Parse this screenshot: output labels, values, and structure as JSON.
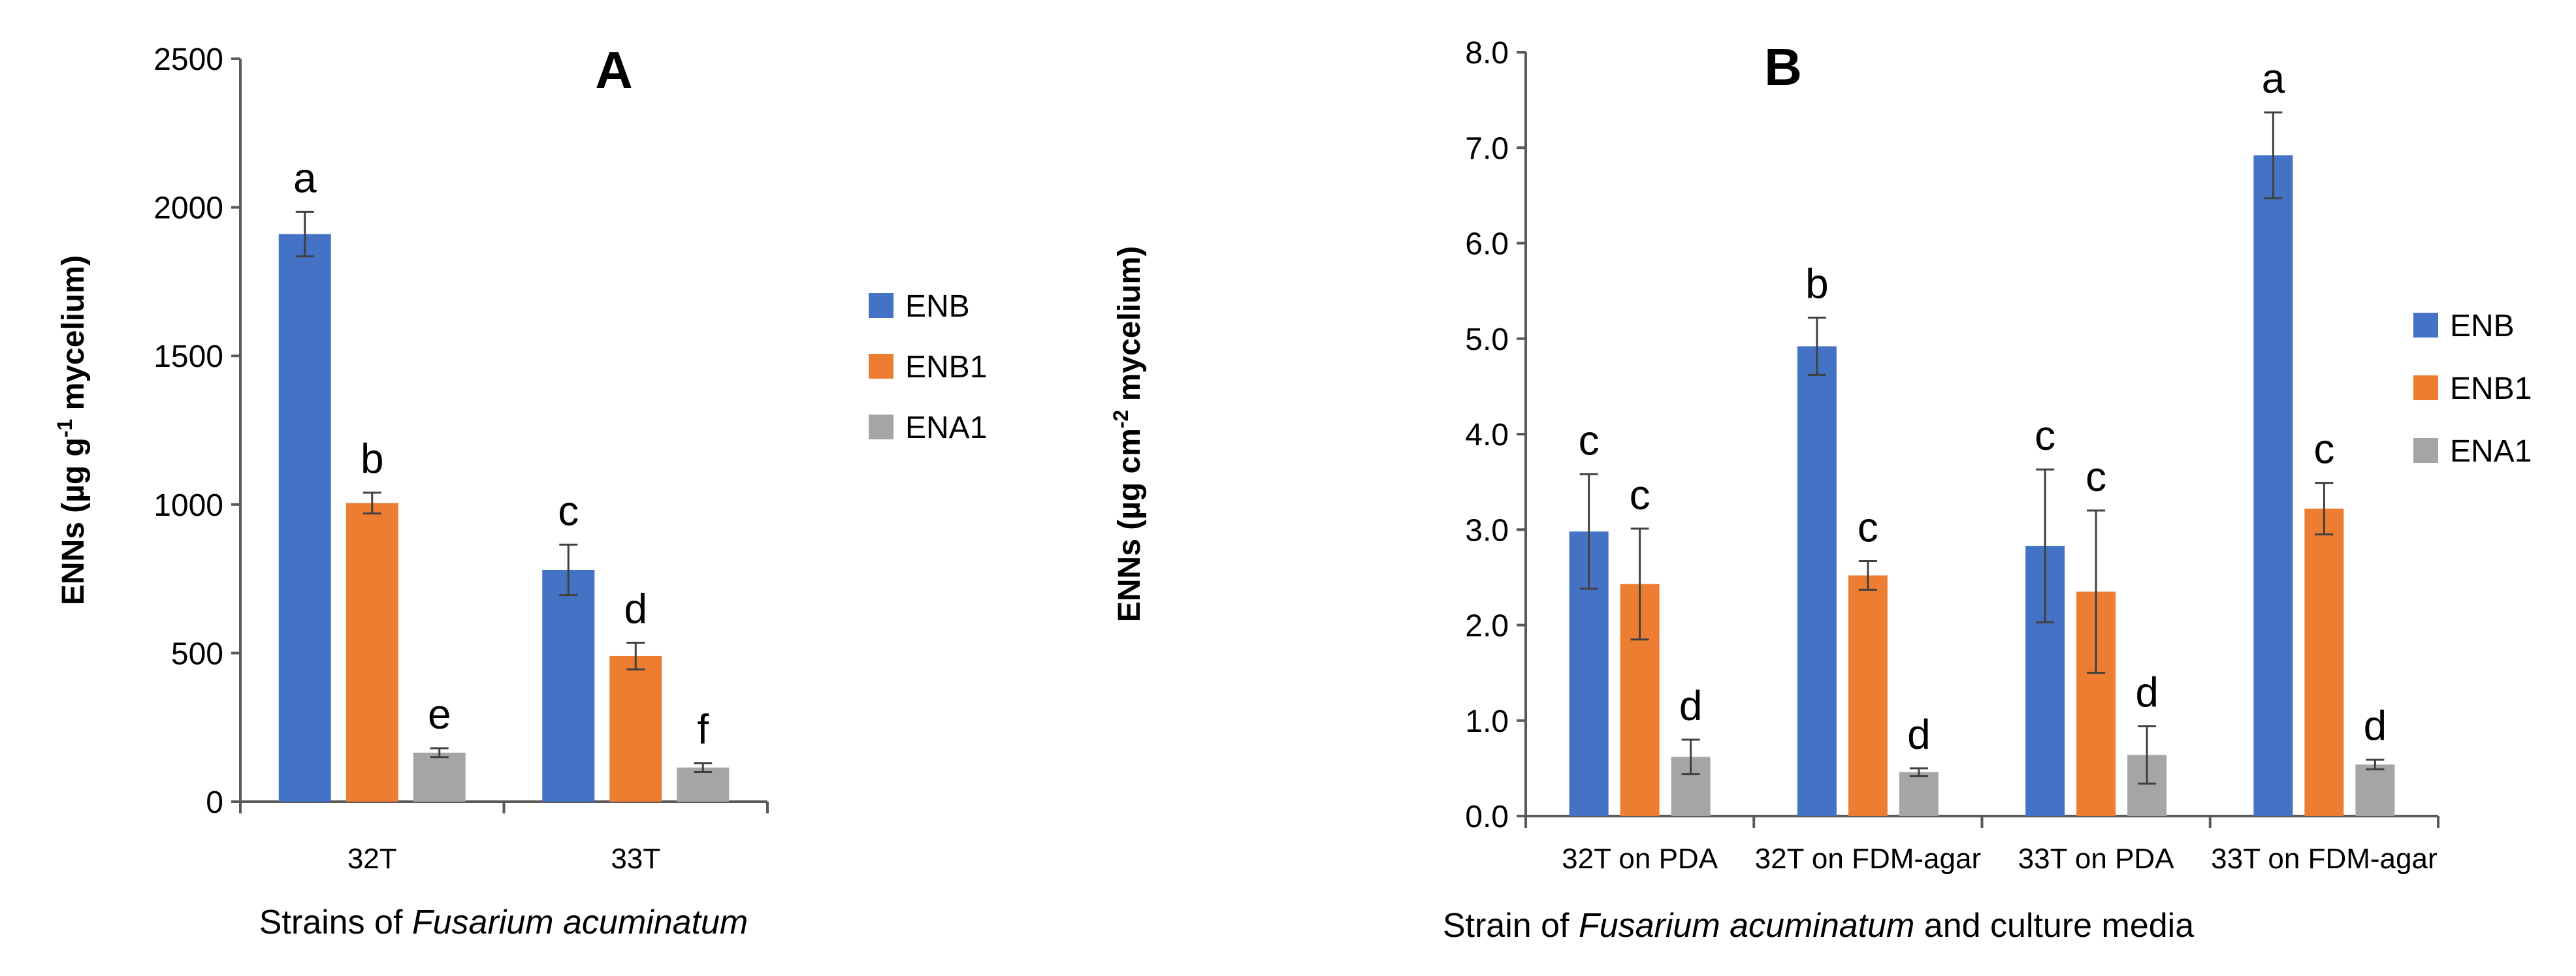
{
  "chart_data": [
    {
      "type": "bar",
      "title": "A",
      "xlabel": {
        "prefix": "Strains of ",
        "italic": "Fusarium acuminatum",
        "suffix": ""
      },
      "ylabel": {
        "before": "ENNs (µg g",
        "sup": "-1",
        "after": " mycelium)"
      },
      "ylim": [
        0,
        2500
      ],
      "yticks": [
        0,
        500,
        1000,
        1500,
        2000,
        2500
      ],
      "ytick_labels": [
        "0",
        "500",
        "1000",
        "1500",
        "2000",
        "2500"
      ],
      "categories": [
        "32T",
        "33T"
      ],
      "series": [
        {
          "name": "ENB",
          "color": "#4472C4",
          "values": [
            1910,
            780
          ],
          "errors": [
            75,
            85
          ],
          "letters": [
            "a",
            "c"
          ]
        },
        {
          "name": "ENB1",
          "color": "#ED7D31",
          "values": [
            1005,
            490
          ],
          "errors": [
            35,
            45
          ],
          "letters": [
            "b",
            "d"
          ]
        },
        {
          "name": "ENA1",
          "color": "#A5A5A5",
          "values": [
            165,
            115
          ],
          "errors": [
            15,
            15
          ],
          "letters": [
            "e",
            "f"
          ]
        }
      ],
      "legend": "right"
    },
    {
      "type": "bar",
      "title": "B",
      "xlabel": {
        "prefix": "Strain of ",
        "italic": "Fusarium acuminatum",
        "suffix": " and culture media"
      },
      "ylabel": {
        "before": "ENNs (µg cm",
        "sup": "-2",
        "after": " mycelium)"
      },
      "ylim": [
        0,
        8
      ],
      "yticks": [
        0,
        1,
        2,
        3,
        4,
        5,
        6,
        7,
        8
      ],
      "ytick_labels": [
        "0.0",
        "1.0",
        "2.0",
        "3.0",
        "4.0",
        "5.0",
        "6.0",
        "7.0",
        "8.0"
      ],
      "categories": [
        "32T on PDA",
        "32T on FDM-agar",
        "33T on PDA",
        "33T on FDM-agar"
      ],
      "series": [
        {
          "name": "ENB",
          "color": "#4472C4",
          "values": [
            2.98,
            4.92,
            2.83,
            6.92
          ],
          "errors": [
            0.6,
            0.3,
            0.8,
            0.45
          ],
          "letters": [
            "c",
            "b",
            "c",
            "a"
          ]
        },
        {
          "name": "ENB1",
          "color": "#ED7D31",
          "values": [
            2.43,
            2.52,
            2.35,
            3.22
          ],
          "errors": [
            0.58,
            0.15,
            0.85,
            0.27
          ],
          "letters": [
            "c",
            "c",
            "c",
            "c"
          ]
        },
        {
          "name": "ENA1",
          "color": "#A5A5A5",
          "values": [
            0.62,
            0.46,
            0.64,
            0.54
          ],
          "errors": [
            0.18,
            0.04,
            0.3,
            0.05
          ],
          "letters": [
            "d",
            "d",
            "d",
            "d"
          ]
        }
      ],
      "legend": "right"
    }
  ]
}
